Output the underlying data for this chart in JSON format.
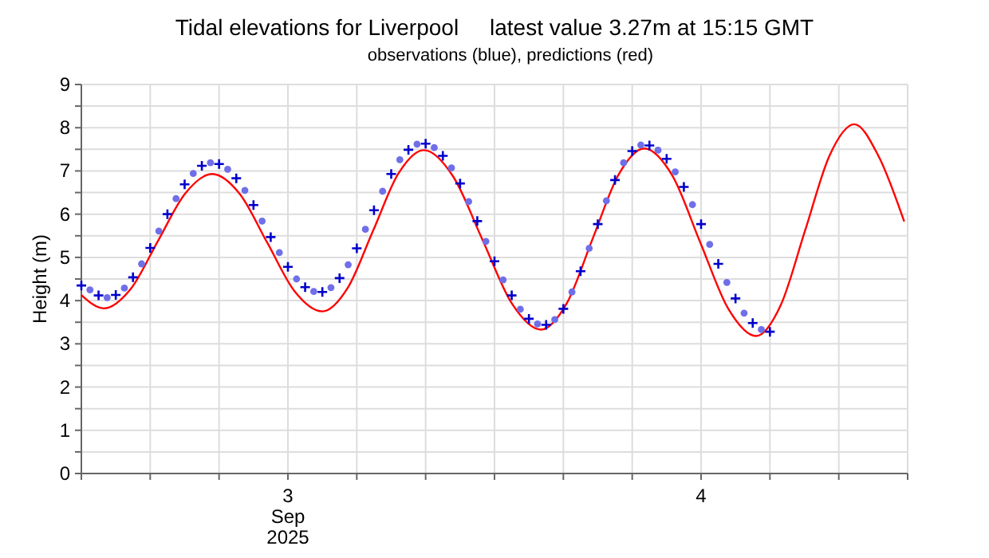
{
  "chart_data": {
    "type": "line",
    "title": "Tidal elevations for Liverpool     latest value 3.27m at 15:15 GMT",
    "subtitle": "observations (blue), predictions (red)",
    "ylabel": "Height (m)",
    "xlim": [
      "2025-09-03T00:00",
      "2025-09-05T00:00"
    ],
    "xticks": [
      {
        "value": "2025-09-03T00:00",
        "label": null
      },
      {
        "value": "2025-09-03T04:00",
        "label": null
      },
      {
        "value": "2025-09-03T08:00",
        "label": null
      },
      {
        "value": "2025-09-03T12:00",
        "label": "3\nSep\n2025"
      },
      {
        "value": "2025-09-03T16:00",
        "label": null
      },
      {
        "value": "2025-09-03T20:00",
        "label": null
      },
      {
        "value": "2025-09-04T00:00",
        "label": null
      },
      {
        "value": "2025-09-04T04:00",
        "label": null
      },
      {
        "value": "2025-09-04T08:00",
        "label": null
      },
      {
        "value": "2025-09-04T12:00",
        "label": "4"
      },
      {
        "value": "2025-09-04T16:00",
        "label": null
      },
      {
        "value": "2025-09-04T20:00",
        "label": null
      },
      {
        "value": "2025-09-05T00:00",
        "label": null
      }
    ],
    "ylim": [
      0,
      9
    ],
    "yticks": [
      0,
      {
        "value": 0.5,
        "label": null
      },
      1,
      {
        "value": 1.5,
        "label": null
      },
      2,
      {
        "value": 2.5,
        "label": null
      },
      3,
      {
        "value": 3.5,
        "label": null
      },
      4,
      {
        "value": 4.5,
        "label": null
      },
      5,
      {
        "value": 5.5,
        "label": null
      },
      6,
      {
        "value": 6.5,
        "label": null
      },
      7,
      {
        "value": 7.5,
        "label": null
      },
      8,
      {
        "value": 8.5,
        "label": null
      },
      9
    ],
    "grid": true,
    "series": [
      {
        "color": "#ff0000",
        "marker": "none",
        "line_style": "solid",
        "x": [
          "2025-09-03T00:00",
          "2025-09-03T01:18",
          "2025-09-03T02:52",
          "2025-09-03T04:27",
          "2025-09-03T06:02",
          "2025-09-03T07:36",
          "2025-09-03T09:12",
          "2025-09-03T10:48",
          "2025-09-03T12:24",
          "2025-09-03T14:00",
          "2025-09-03T15:28",
          "2025-09-03T16:57",
          "2025-09-03T18:25",
          "2025-09-03T19:54",
          "2025-09-03T21:36",
          "2025-09-03T23:18",
          "2025-09-04T01:00",
          "2025-09-04T02:42",
          "2025-09-04T04:12",
          "2025-09-04T05:42",
          "2025-09-04T07:12",
          "2025-09-04T08:42",
          "2025-09-04T10:20",
          "2025-09-04T11:57",
          "2025-09-04T13:35",
          "2025-09-04T15:12",
          "2025-09-04T16:38",
          "2025-09-04T18:03",
          "2025-09-04T19:28",
          "2025-09-04T20:54",
          "2025-09-04T22:18",
          "2025-09-04T23:48"
        ],
        "values": [
          4.13,
          3.82,
          4.27,
          5.38,
          6.48,
          6.93,
          6.47,
          5.34,
          4.21,
          3.75,
          4.29,
          5.62,
          6.94,
          7.48,
          6.87,
          5.41,
          3.94,
          3.33,
          3.94,
          5.43,
          6.91,
          7.52,
          6.89,
          5.35,
          3.81,
          3.18,
          3.9,
          5.63,
          7.36,
          8.08,
          7.35,
          5.83
        ]
      },
      {
        "type": "scatter",
        "color": "#0000cc",
        "marker": "cross",
        "x": [
          "2025-09-03T00:00",
          "2025-09-03T01:00",
          "2025-09-03T02:00",
          "2025-09-03T03:00",
          "2025-09-03T04:00",
          "2025-09-03T05:00",
          "2025-09-03T06:00",
          "2025-09-03T07:00",
          "2025-09-03T08:00",
          "2025-09-03T09:00",
          "2025-09-03T10:00",
          "2025-09-03T11:00",
          "2025-09-03T12:00",
          "2025-09-03T13:00",
          "2025-09-03T14:00",
          "2025-09-03T15:00",
          "2025-09-03T16:00",
          "2025-09-03T17:00",
          "2025-09-03T18:00",
          "2025-09-03T19:00",
          "2025-09-03T20:00",
          "2025-09-03T21:00",
          "2025-09-03T22:00",
          "2025-09-03T23:00",
          "2025-09-04T00:00",
          "2025-09-04T01:00",
          "2025-09-04T02:00",
          "2025-09-04T03:00",
          "2025-09-04T04:00",
          "2025-09-04T05:00",
          "2025-09-04T06:00",
          "2025-09-04T07:00",
          "2025-09-04T08:00",
          "2025-09-04T09:00",
          "2025-09-04T10:00",
          "2025-09-04T11:00",
          "2025-09-04T12:00",
          "2025-09-04T13:00",
          "2025-09-04T14:00",
          "2025-09-04T15:00",
          "2025-09-04T16:00"
        ],
        "values": [
          4.35,
          4.12,
          4.13,
          4.54,
          5.22,
          6.0,
          6.69,
          7.12,
          7.16,
          6.83,
          6.21,
          5.47,
          4.78,
          4.31,
          4.2,
          4.52,
          5.21,
          6.09,
          6.93,
          7.49,
          7.63,
          7.35,
          6.71,
          5.84,
          4.91,
          4.12,
          3.58,
          3.44,
          3.81,
          4.68,
          5.77,
          6.79,
          7.46,
          7.59,
          7.28,
          6.63,
          5.77,
          4.85,
          4.05,
          3.48,
          3.28
        ]
      },
      {
        "type": "scatter",
        "color": "#6f6fe8",
        "marker": "circle",
        "x": [
          "2025-09-03T00:30",
          "2025-09-03T01:30",
          "2025-09-03T02:30",
          "2025-09-03T03:30",
          "2025-09-03T04:30",
          "2025-09-03T05:30",
          "2025-09-03T06:30",
          "2025-09-03T07:30",
          "2025-09-03T08:30",
          "2025-09-03T09:30",
          "2025-09-03T10:30",
          "2025-09-03T11:30",
          "2025-09-03T12:30",
          "2025-09-03T13:30",
          "2025-09-03T14:30",
          "2025-09-03T15:30",
          "2025-09-03T16:30",
          "2025-09-03T17:30",
          "2025-09-03T18:30",
          "2025-09-03T19:30",
          "2025-09-03T20:30",
          "2025-09-03T21:30",
          "2025-09-03T22:30",
          "2025-09-03T23:30",
          "2025-09-04T00:30",
          "2025-09-04T01:30",
          "2025-09-04T02:30",
          "2025-09-04T03:30",
          "2025-09-04T04:30",
          "2025-09-04T05:30",
          "2025-09-04T06:30",
          "2025-09-04T07:30",
          "2025-09-04T08:30",
          "2025-09-04T09:30",
          "2025-09-04T10:30",
          "2025-09-04T11:30",
          "2025-09-04T12:30",
          "2025-09-04T13:30",
          "2025-09-04T14:30",
          "2025-09-04T15:30"
        ],
        "values": [
          4.25,
          4.07,
          4.29,
          4.85,
          5.61,
          6.36,
          6.94,
          7.19,
          7.04,
          6.55,
          5.84,
          5.11,
          4.5,
          4.21,
          4.3,
          4.83,
          5.65,
          6.53,
          7.26,
          7.62,
          7.54,
          7.07,
          6.29,
          5.37,
          4.48,
          3.8,
          3.46,
          3.56,
          4.2,
          5.21,
          6.31,
          7.19,
          7.6,
          7.48,
          6.98,
          6.22,
          5.3,
          4.42,
          3.71,
          3.33
        ]
      }
    ]
  }
}
